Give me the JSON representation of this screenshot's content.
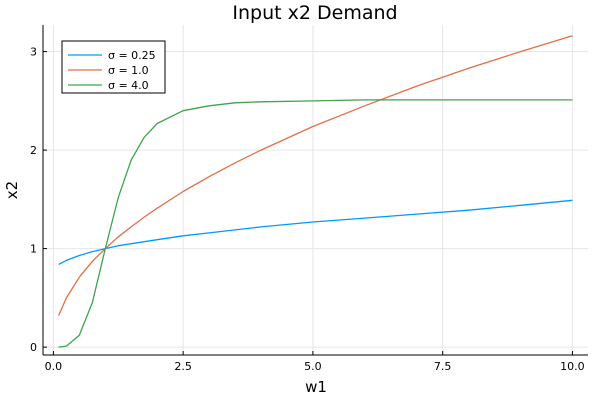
{
  "chart_data": {
    "type": "line",
    "title": "Input x2 Demand",
    "xlabel": "w1",
    "ylabel": "x2",
    "xlim": [
      -0.2,
      10.3
    ],
    "ylim": [
      -0.08,
      3.27
    ],
    "xticks": [
      0.0,
      2.5,
      5.0,
      7.5,
      10.0
    ],
    "xtick_labels": [
      "0.0",
      "2.5",
      "5.0",
      "7.5",
      "10.0"
    ],
    "yticks": [
      0,
      1,
      2,
      3
    ],
    "ytick_labels": [
      "0",
      "1",
      "2",
      "3"
    ],
    "grid": true,
    "legend_position": "top-left",
    "x": [
      0.1,
      0.25,
      0.5,
      0.75,
      1.0,
      1.25,
      1.5,
      1.75,
      2.0,
      2.5,
      3.0,
      3.5,
      4.0,
      5.0,
      6.0,
      7.0,
      8.0,
      9.0,
      10.0
    ],
    "series": [
      {
        "name": "σ = 0.25",
        "color": "#009AFA",
        "values": [
          0.84,
          0.88,
          0.93,
          0.97,
          1.0,
          1.03,
          1.05,
          1.07,
          1.09,
          1.13,
          1.16,
          1.19,
          1.22,
          1.27,
          1.31,
          1.35,
          1.39,
          1.44,
          1.49
        ]
      },
      {
        "name": "σ = 1.0",
        "color": "#E36F47",
        "values": [
          0.32,
          0.5,
          0.71,
          0.87,
          1.0,
          1.12,
          1.22,
          1.32,
          1.41,
          1.58,
          1.73,
          1.87,
          2.0,
          2.24,
          2.45,
          2.65,
          2.83,
          3.0,
          3.16
        ]
      },
      {
        "name": "σ = 4.0",
        "color": "#3EA44E",
        "values": [
          0.0,
          0.01,
          0.12,
          0.45,
          1.0,
          1.52,
          1.9,
          2.13,
          2.27,
          2.4,
          2.45,
          2.48,
          2.49,
          2.5,
          2.51,
          2.51,
          2.51,
          2.51,
          2.51
        ]
      }
    ]
  }
}
